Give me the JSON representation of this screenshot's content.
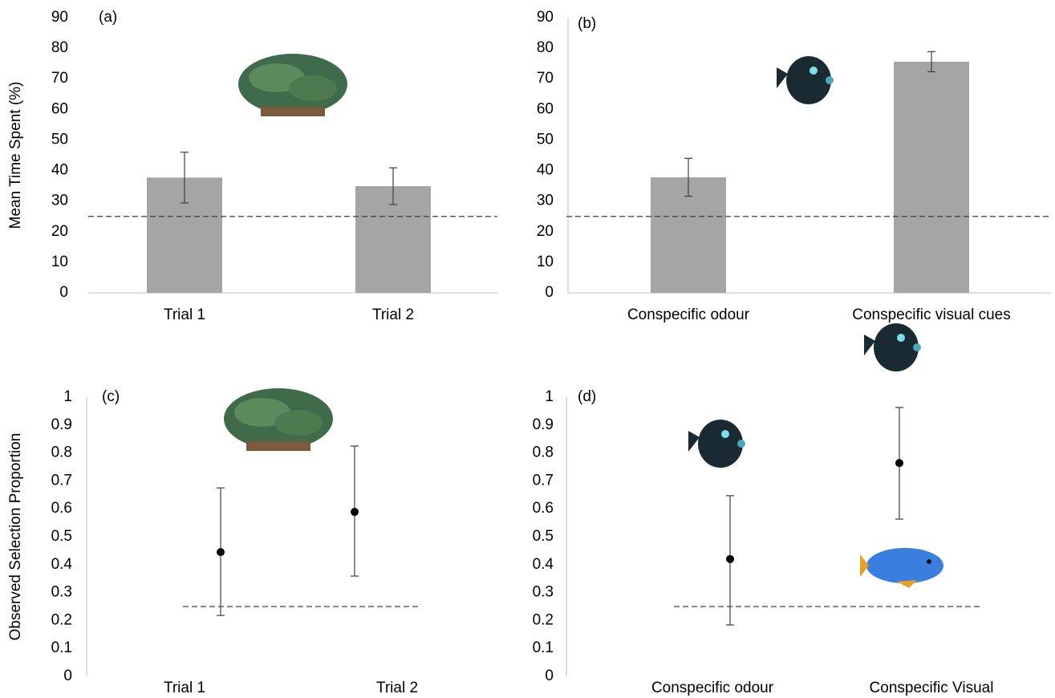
{
  "chart_data": [
    {
      "type": "bar",
      "label": "(a)",
      "ylabel": "Mean Time Spent (%)",
      "categories": [
        "Trial 1",
        "Trial 2"
      ],
      "values": [
        37.7,
        34.9
      ],
      "errors": [
        8.3,
        6.0
      ],
      "color": "#a5a5a5",
      "ylim": [
        0,
        90
      ],
      "yticks": [
        0,
        10,
        20,
        30,
        40,
        50,
        60,
        70,
        80,
        90
      ],
      "reference_line": 25
    },
    {
      "type": "bar",
      "label": "(b)",
      "categories": [
        "Conspecific odour",
        "Conspecific visual cues"
      ],
      "values": [
        37.8,
        75.6
      ],
      "errors": [
        6.2,
        3.3
      ],
      "color": "#a5a5a5",
      "ylim": [
        0,
        90
      ],
      "yticks": [
        0,
        10,
        20,
        30,
        40,
        50,
        60,
        70,
        80,
        90
      ],
      "reference_line": 25
    },
    {
      "type": "dot",
      "label": "(c)",
      "ylabel": "Observed Selection Proportion",
      "categories": [
        "Trial 1",
        "Trial 2"
      ],
      "values": [
        0.445,
        0.589
      ],
      "error_minus": [
        0.227,
        0.23
      ],
      "error_plus": [
        0.23,
        0.236
      ],
      "color": "#000000",
      "ylim": [
        0,
        1
      ],
      "yticks": [
        0,
        0.1,
        0.2,
        0.3,
        0.4,
        0.5,
        0.6,
        0.7,
        0.8,
        0.9,
        1
      ],
      "reference_line": 0.25
    },
    {
      "type": "dot",
      "label": "(d)",
      "categories": [
        "Conspecific odour",
        "Conspecific Visual"
      ],
      "values": [
        0.42,
        0.764
      ],
      "error_minus": [
        0.236,
        0.201
      ],
      "error_plus": [
        0.227,
        0.199
      ],
      "color": "#000000",
      "ylim": [
        0,
        1
      ],
      "yticks": [
        0,
        0.1,
        0.2,
        0.3,
        0.4,
        0.5,
        0.6,
        0.7,
        0.8,
        0.9,
        1
      ],
      "reference_line": 0.25
    }
  ]
}
